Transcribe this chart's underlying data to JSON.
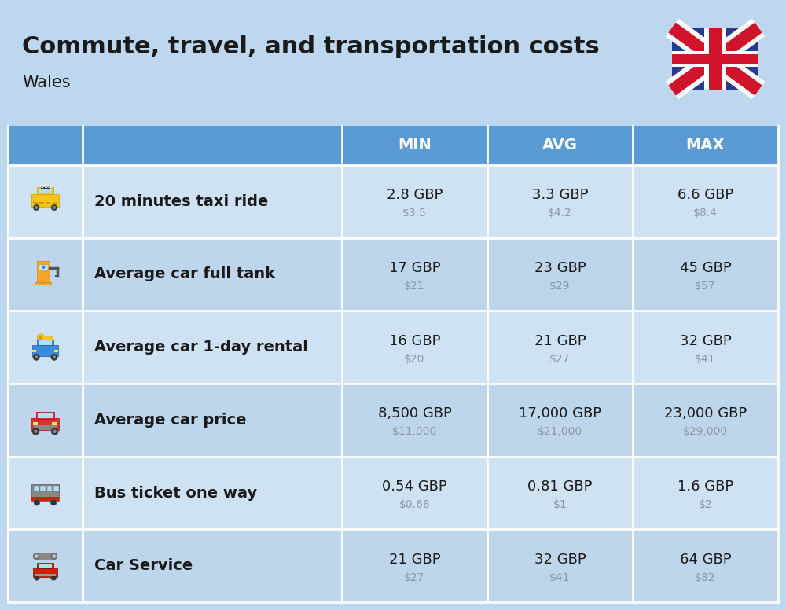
{
  "title": "Commute, travel, and transportation costs",
  "subtitle": "Wales",
  "header_bg": "#5b9bd5",
  "header_text_color": "#ffffff",
  "bg_color": "#bdd7ee",
  "row_bg_even": "#cfe2f3",
  "row_bg_odd": "#bed6eb",
  "border_color": "#ffffff",
  "col_header_labels": [
    "MIN",
    "AVG",
    "MAX"
  ],
  "rows": [
    {
      "label": "20 minutes taxi ride",
      "min_gbp": "2.8 GBP",
      "min_usd": "$3.5",
      "avg_gbp": "3.3 GBP",
      "avg_usd": "$4.2",
      "max_gbp": "6.6 GBP",
      "max_usd": "$8.4"
    },
    {
      "label": "Average car full tank",
      "min_gbp": "17 GBP",
      "min_usd": "$21",
      "avg_gbp": "23 GBP",
      "avg_usd": "$29",
      "max_gbp": "45 GBP",
      "max_usd": "$57"
    },
    {
      "label": "Average car 1-day rental",
      "min_gbp": "16 GBP",
      "min_usd": "$20",
      "avg_gbp": "21 GBP",
      "avg_usd": "$27",
      "max_gbp": "32 GBP",
      "max_usd": "$41"
    },
    {
      "label": "Average car price",
      "min_gbp": "8,500 GBP",
      "min_usd": "$11,000",
      "avg_gbp": "17,000 GBP",
      "avg_usd": "$21,000",
      "max_gbp": "23,000 GBP",
      "max_usd": "$29,000"
    },
    {
      "label": "Bus ticket one way",
      "min_gbp": "0.54 GBP",
      "min_usd": "$0.68",
      "avg_gbp": "0.81 GBP",
      "avg_usd": "$1",
      "max_gbp": "1.6 GBP",
      "max_usd": "$2"
    },
    {
      "label": "Car Service",
      "min_gbp": "21 GBP",
      "min_usd": "$27",
      "avg_gbp": "32 GBP",
      "avg_usd": "$41",
      "max_gbp": "64 GBP",
      "max_usd": "$82"
    }
  ],
  "title_fontsize": 22,
  "subtitle_fontsize": 15,
  "header_fontsize": 14,
  "row_label_fontsize": 14,
  "value_fontsize": 13,
  "sub_value_fontsize": 10
}
